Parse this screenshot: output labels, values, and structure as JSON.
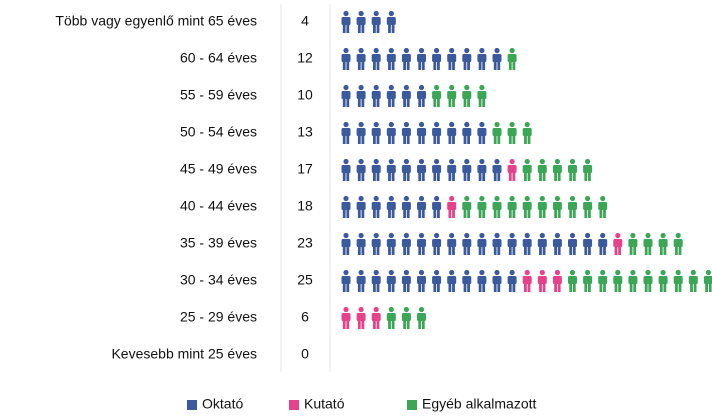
{
  "chart_data": {
    "type": "pictogram",
    "categories": [
      "Több vagy egyenlő mint 65 éves",
      "60 - 64 éves",
      "55 - 59 éves",
      "50 - 54 éves",
      "45 - 49 éves",
      "40 - 44 éves",
      "35 - 39 éves",
      "30 - 34 éves",
      "25 - 29 éves",
      "Kevesebb mint 25 éves"
    ],
    "totals": [
      4,
      12,
      10,
      13,
      17,
      18,
      23,
      25,
      6,
      0
    ],
    "series": [
      {
        "name": "Oktató",
        "color": "#3b5a9d",
        "values": [
          4,
          11,
          6,
          10,
          11,
          7,
          18,
          12,
          0,
          0
        ]
      },
      {
        "name": "Kutató",
        "color": "#e6428b",
        "values": [
          0,
          0,
          0,
          0,
          1,
          1,
          1,
          3,
          3,
          0
        ]
      },
      {
        "name": "Egyéb alkalmazott",
        "color": "#3ba656",
        "values": [
          0,
          1,
          4,
          3,
          5,
          10,
          4,
          10,
          3,
          0
        ]
      }
    ]
  }
}
